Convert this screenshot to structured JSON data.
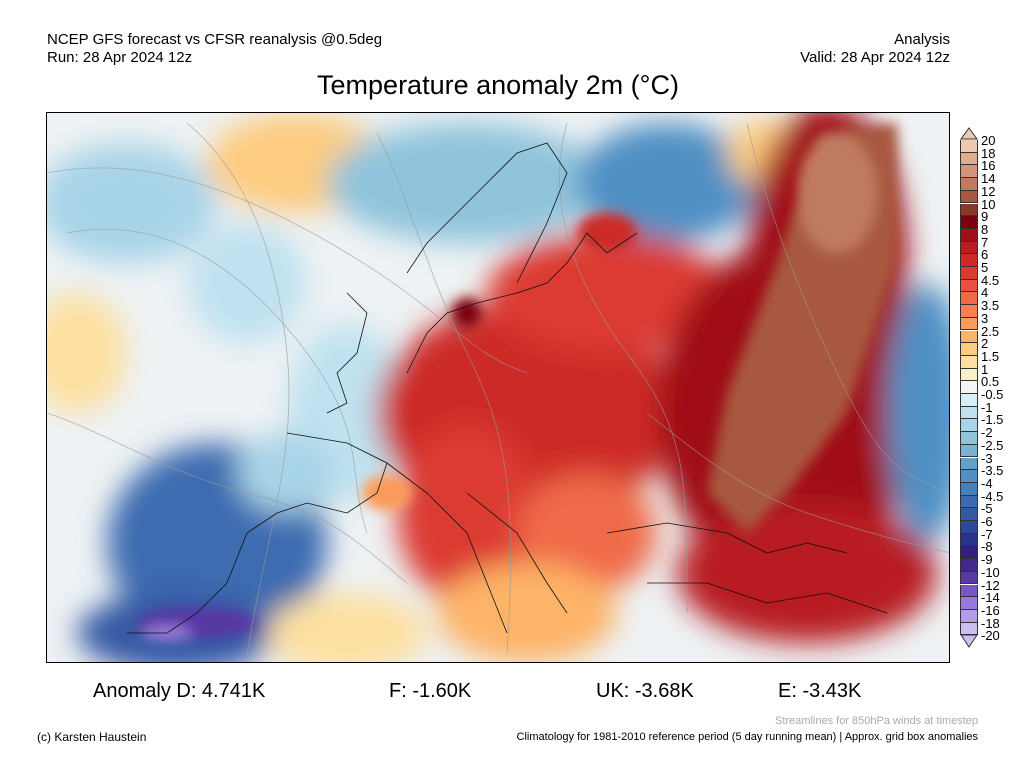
{
  "header": {
    "left_line1": "NCEP GFS forecast vs CFSR reanalysis @0.5deg",
    "left_line2": "Run: 28 Apr 2024 12z",
    "right_line1": "Analysis",
    "right_line2": "Valid: 28 Apr 2024 12z",
    "title": "Temperature anomaly 2m (°C)"
  },
  "colorbar": {
    "labels": [
      "20",
      "18",
      "16",
      "14",
      "12",
      "10",
      "9",
      "8",
      "7",
      "6",
      "5",
      "4.5",
      "4",
      "3.5",
      "3",
      "2.5",
      "2",
      "1.5",
      "1",
      "0.5",
      "-0.5",
      "-1",
      "-1.5",
      "-2",
      "-2.5",
      "-3",
      "-3.5",
      "-4",
      "-4.5",
      "-5",
      "-6",
      "-7",
      "-8",
      "-9",
      "-10",
      "-12",
      "-14",
      "-16",
      "-18",
      "-20"
    ],
    "colors": [
      "#f0c8b0",
      "#e4aa8c",
      "#d4947a",
      "#c07a60",
      "#a85840",
      "#8c3828",
      "#7a0010",
      "#a01018",
      "#b81e20",
      "#cc2a28",
      "#dc3a30",
      "#e85040",
      "#f06a48",
      "#f88050",
      "#fc9a5a",
      "#fdb468",
      "#fdcc80",
      "#fde0a0",
      "#f8f0c8",
      "#f4f4f4",
      "#d8eef8",
      "#c0e2f0",
      "#a8d4e8",
      "#90c4dc",
      "#78b2d4",
      "#64a0cc",
      "#5090c4",
      "#4480bc",
      "#3c6cb0",
      "#3458a4",
      "#2c4898",
      "#28348a",
      "#32207c",
      "#40288c",
      "#5838a4",
      "#7858c0",
      "#9878d8",
      "#b49ce8",
      "#ccc0f0"
    ]
  },
  "stats": {
    "anomaly_d": "Anomaly D: 4.741K",
    "f": "F: -1.60K",
    "uk": "UK: -3.68K",
    "e": "E: -3.43K"
  },
  "footer": {
    "copyright": "(c) Karsten Haustein",
    "streamlines_note": "Streamlines for 850hPa winds at timestep",
    "climatology_note": "Climatology for 1981-2010 reference period (5 day running mean) | Approx. grid box anomalies"
  }
}
